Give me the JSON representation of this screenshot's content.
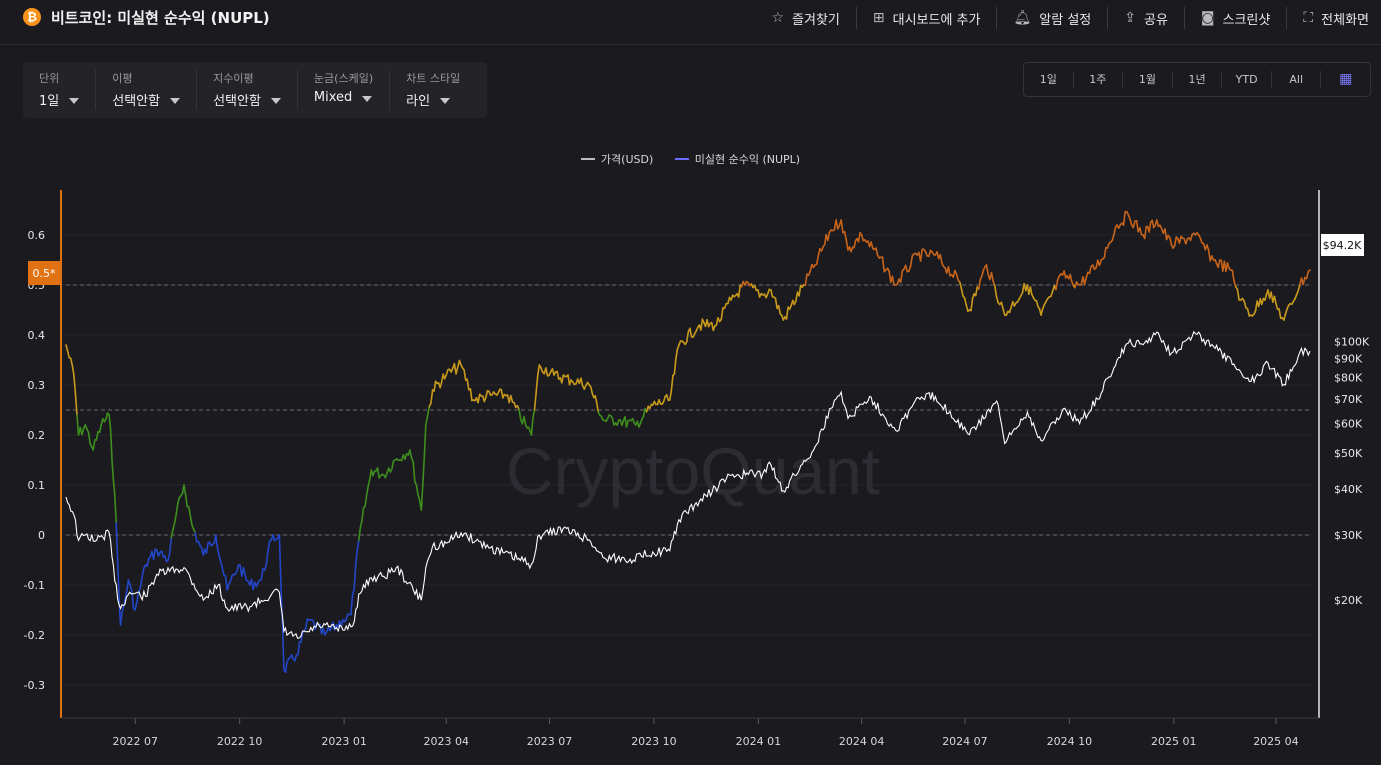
{
  "header": {
    "logo_glyph": "₿",
    "title": "비트코인: 미실현 순수익 (NUPL)",
    "actions": [
      {
        "icon": "star-icon",
        "glyph": "☆",
        "label": "즐겨찾기"
      },
      {
        "icon": "dashboard-add-icon",
        "glyph": "⊞",
        "label": "대시보드에 추가"
      },
      {
        "icon": "bell-icon",
        "glyph": "♫",
        "label": "알람 설정"
      },
      {
        "icon": "share-icon",
        "glyph": "⇪",
        "label": "공유"
      },
      {
        "icon": "camera-icon",
        "glyph": "◙",
        "label": "스크린샷"
      },
      {
        "icon": "fullscreen-icon",
        "glyph": "⛶",
        "label": "전체화면"
      }
    ]
  },
  "filters": [
    {
      "label": "단위",
      "value": "1일"
    },
    {
      "label": "이평",
      "value": "선택안함"
    },
    {
      "label": "지수이평",
      "value": "선택안함"
    },
    {
      "label": "눈금(스케일)",
      "value": "Mixed"
    },
    {
      "label": "차트 스타일",
      "value": "라인"
    }
  ],
  "ranges": [
    "1일",
    "1주",
    "1월",
    "1년",
    "YTD",
    "All"
  ],
  "calendar_icon": "calendar-icon",
  "watermark": "CryptoQuant",
  "colors": {
    "price": "#ffffff",
    "blue": "#2346c8",
    "green": "#3e8e1e",
    "yellow": "#c99a1b",
    "orange": "#c8641a",
    "marker": "#e07214",
    "price_tag_bg": "#ffffff"
  },
  "chart_data": {
    "type": "line",
    "legend": [
      {
        "name": "가격(USD)",
        "color": "#bdbdc2"
      },
      {
        "name": "미실현 순수익 (NUPL)",
        "color": "#6b6bff"
      }
    ],
    "x_ticks": [
      "2022 07",
      "2022 10",
      "2023 01",
      "2023 04",
      "2023 07",
      "2023 10",
      "2024 01",
      "2024 04",
      "2024 07",
      "2024 10",
      "2025 01",
      "2025 04"
    ],
    "x_range": [
      "2022-05",
      "2025-05"
    ],
    "left_axis": {
      "ticks": [
        "0.6",
        "0.5",
        "0.4",
        "0.3",
        "0.2",
        "0.1",
        "0",
        "-0.1",
        "-0.2",
        "-0.3"
      ],
      "range": [
        -0.33,
        0.66
      ],
      "marker_label": "0.5*"
    },
    "right_axis": {
      "scale": "log",
      "ticks": [
        "$100K",
        "$90K",
        "$80K",
        "$70K",
        "$60K",
        "$50K",
        "$40K",
        "$30K",
        "$20K"
      ],
      "current_label": "$94.2K"
    },
    "guides": [
      0.5,
      0.25
    ],
    "nupl_bands": {
      "blue_below": 0,
      "green_below": 0.25,
      "yellow_below": 0.5
    },
    "nupl_series": [
      [
        "2022-05-01",
        0.38
      ],
      [
        "2022-05-08",
        0.32
      ],
      [
        "2022-05-12",
        0.2
      ],
      [
        "2022-05-18",
        0.22
      ],
      [
        "2022-05-25",
        0.17
      ],
      [
        "2022-06-01",
        0.22
      ],
      [
        "2022-06-08",
        0.24
      ],
      [
        "2022-06-13",
        0.08
      ],
      [
        "2022-06-18",
        -0.18
      ],
      [
        "2022-06-25",
        -0.09
      ],
      [
        "2022-07-01",
        -0.15
      ],
      [
        "2022-07-10",
        -0.06
      ],
      [
        "2022-07-20",
        -0.03
      ],
      [
        "2022-07-30",
        -0.05
      ],
      [
        "2022-08-06",
        0.04
      ],
      [
        "2022-08-13",
        0.1
      ],
      [
        "2022-08-20",
        0.02
      ],
      [
        "2022-08-30",
        -0.04
      ],
      [
        "2022-09-10",
        0.0
      ],
      [
        "2022-09-20",
        -0.11
      ],
      [
        "2022-09-30",
        -0.06
      ],
      [
        "2022-10-10",
        -0.1
      ],
      [
        "2022-10-20",
        -0.09
      ],
      [
        "2022-10-29",
        -0.01
      ],
      [
        "2022-11-05",
        0.0
      ],
      [
        "2022-11-09",
        -0.27
      ],
      [
        "2022-11-20",
        -0.24
      ],
      [
        "2022-12-01",
        -0.17
      ],
      [
        "2022-12-15",
        -0.2
      ],
      [
        "2022-12-31",
        -0.17
      ],
      [
        "2023-01-07",
        -0.16
      ],
      [
        "2023-01-14",
        -0.01
      ],
      [
        "2023-01-25",
        0.13
      ],
      [
        "2023-02-05",
        0.12
      ],
      [
        "2023-02-15",
        0.15
      ],
      [
        "2023-02-28",
        0.17
      ],
      [
        "2023-03-10",
        0.05
      ],
      [
        "2023-03-14",
        0.22
      ],
      [
        "2023-03-20",
        0.29
      ],
      [
        "2023-04-01",
        0.32
      ],
      [
        "2023-04-14",
        0.34
      ],
      [
        "2023-04-25",
        0.27
      ],
      [
        "2023-05-10",
        0.28
      ],
      [
        "2023-05-25",
        0.28
      ],
      [
        "2023-06-10",
        0.22
      ],
      [
        "2023-06-15",
        0.2
      ],
      [
        "2023-06-22",
        0.34
      ],
      [
        "2023-07-05",
        0.32
      ],
      [
        "2023-07-20",
        0.31
      ],
      [
        "2023-08-05",
        0.3
      ],
      [
        "2023-08-17",
        0.23
      ],
      [
        "2023-08-31",
        0.23
      ],
      [
        "2023-09-15",
        0.22
      ],
      [
        "2023-09-30",
        0.26
      ],
      [
        "2023-10-15",
        0.27
      ],
      [
        "2023-10-23",
        0.38
      ],
      [
        "2023-11-10",
        0.42
      ],
      [
        "2023-11-25",
        0.42
      ],
      [
        "2023-12-08",
        0.47
      ],
      [
        "2023-12-20",
        0.5
      ],
      [
        "2024-01-05",
        0.48
      ],
      [
        "2024-01-12",
        0.49
      ],
      [
        "2024-01-23",
        0.43
      ],
      [
        "2024-02-10",
        0.5
      ],
      [
        "2024-02-20",
        0.54
      ],
      [
        "2024-03-05",
        0.61
      ],
      [
        "2024-03-14",
        0.63
      ],
      [
        "2024-03-20",
        0.57
      ],
      [
        "2024-04-01",
        0.6
      ],
      [
        "2024-04-15",
        0.56
      ],
      [
        "2024-05-01",
        0.5
      ],
      [
        "2024-05-20",
        0.56
      ],
      [
        "2024-06-05",
        0.56
      ],
      [
        "2024-06-25",
        0.51
      ],
      [
        "2024-07-05",
        0.45
      ],
      [
        "2024-07-20",
        0.54
      ],
      [
        "2024-08-05",
        0.44
      ],
      [
        "2024-08-25",
        0.5
      ],
      [
        "2024-09-06",
        0.44
      ],
      [
        "2024-09-25",
        0.52
      ],
      [
        "2024-10-10",
        0.5
      ],
      [
        "2024-10-29",
        0.55
      ],
      [
        "2024-11-12",
        0.62
      ],
      [
        "2024-11-22",
        0.64
      ],
      [
        "2024-12-05",
        0.6
      ],
      [
        "2024-12-17",
        0.63
      ],
      [
        "2024-12-30",
        0.58
      ],
      [
        "2025-01-20",
        0.6
      ],
      [
        "2025-02-05",
        0.55
      ],
      [
        "2025-02-20",
        0.53
      ],
      [
        "2025-03-01",
        0.47
      ],
      [
        "2025-03-10",
        0.44
      ],
      [
        "2025-03-25",
        0.49
      ],
      [
        "2025-04-08",
        0.43
      ],
      [
        "2025-04-22",
        0.5
      ],
      [
        "2025-05-01",
        0.53
      ]
    ],
    "price_series": [
      [
        "2022-05-01",
        38000
      ],
      [
        "2022-05-08",
        34000
      ],
      [
        "2022-05-12",
        29000
      ],
      [
        "2022-05-18",
        30000
      ],
      [
        "2022-05-28",
        29000
      ],
      [
        "2022-06-08",
        30500
      ],
      [
        "2022-06-13",
        22500
      ],
      [
        "2022-06-18",
        19000
      ],
      [
        "2022-06-26",
        21000
      ],
      [
        "2022-07-10",
        20500
      ],
      [
        "2022-07-20",
        23500
      ],
      [
        "2022-08-13",
        24500
      ],
      [
        "2022-08-30",
        20000
      ],
      [
        "2022-09-12",
        22000
      ],
      [
        "2022-09-20",
        19000
      ],
      [
        "2022-10-10",
        19200
      ],
      [
        "2022-10-29",
        20700
      ],
      [
        "2022-11-05",
        21000
      ],
      [
        "2022-11-09",
        16500
      ],
      [
        "2022-11-21",
        15800
      ],
      [
        "2022-12-10",
        17100
      ],
      [
        "2022-12-31",
        16600
      ],
      [
        "2023-01-10",
        17500
      ],
      [
        "2023-01-14",
        20800
      ],
      [
        "2023-01-25",
        23000
      ],
      [
        "2023-02-05",
        23200
      ],
      [
        "2023-02-16",
        24500
      ],
      [
        "2023-03-10",
        20000
      ],
      [
        "2023-03-14",
        24500
      ],
      [
        "2023-03-20",
        28000
      ],
      [
        "2023-04-01",
        28500
      ],
      [
        "2023-04-14",
        30400
      ],
      [
        "2023-05-10",
        27700
      ],
      [
        "2023-06-15",
        25000
      ],
      [
        "2023-06-22",
        30000
      ],
      [
        "2023-07-13",
        31200
      ],
      [
        "2023-08-05",
        29100
      ],
      [
        "2023-08-17",
        26100
      ],
      [
        "2023-09-10",
        25800
      ],
      [
        "2023-09-30",
        27000
      ],
      [
        "2023-10-15",
        27200
      ],
      [
        "2023-10-23",
        33000
      ],
      [
        "2023-11-10",
        37000
      ],
      [
        "2023-12-08",
        43500
      ],
      [
        "2024-01-05",
        44000
      ],
      [
        "2024-01-12",
        46500
      ],
      [
        "2024-01-23",
        39500
      ],
      [
        "2024-02-20",
        52000
      ],
      [
        "2024-03-05",
        66000
      ],
      [
        "2024-03-14",
        73000
      ],
      [
        "2024-03-20",
        62000
      ],
      [
        "2024-04-08",
        71000
      ],
      [
        "2024-05-01",
        57500
      ],
      [
        "2024-05-21",
        70500
      ],
      [
        "2024-06-05",
        71000
      ],
      [
        "2024-07-05",
        56000
      ],
      [
        "2024-07-29",
        69000
      ],
      [
        "2024-08-05",
        53000
      ],
      [
        "2024-08-25",
        64500
      ],
      [
        "2024-09-06",
        54000
      ],
      [
        "2024-09-27",
        66000
      ],
      [
        "2024-10-10",
        60000
      ],
      [
        "2024-10-29",
        72500
      ],
      [
        "2024-11-12",
        89000
      ],
      [
        "2024-11-22",
        99000
      ],
      [
        "2024-12-05",
        98000
      ],
      [
        "2024-12-17",
        106000
      ],
      [
        "2024-12-30",
        93000
      ],
      [
        "2025-01-20",
        105000
      ],
      [
        "2025-02-05",
        97000
      ],
      [
        "2025-02-27",
        84000
      ],
      [
        "2025-03-10",
        78000
      ],
      [
        "2025-03-25",
        87500
      ],
      [
        "2025-04-08",
        76500
      ],
      [
        "2025-04-22",
        93500
      ],
      [
        "2025-05-01",
        94200
      ]
    ]
  }
}
